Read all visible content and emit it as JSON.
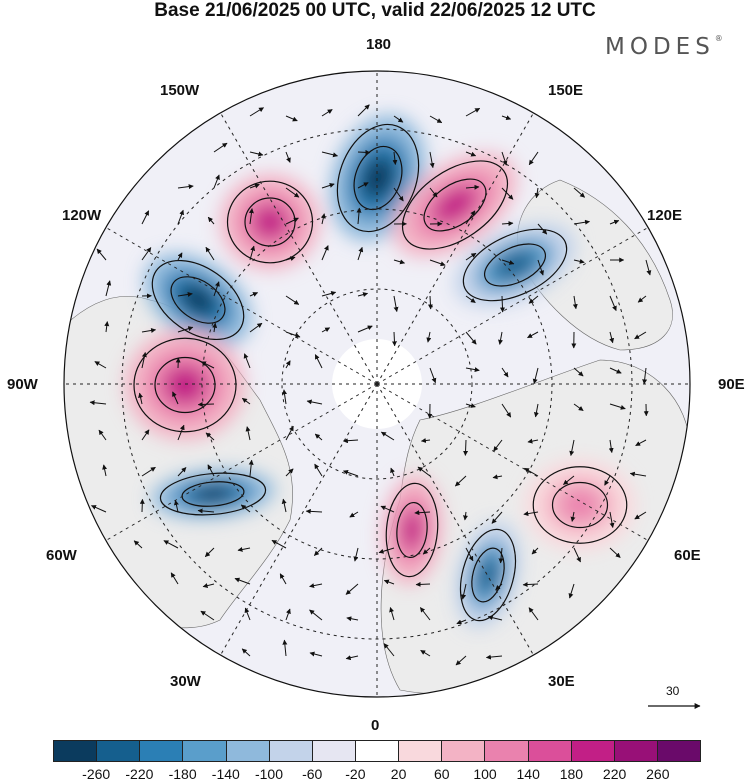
{
  "title": "Base 21/06/2025 00 UTC, valid 22/06/2025 12 UTC",
  "brand": "MODES",
  "brand_mark": "®",
  "longitude_labels": {
    "top": "180",
    "bottom": "0",
    "left": "90W",
    "right": "90E",
    "upper_left": "150W",
    "upper_right": "150E",
    "mid_upper_left": "120W",
    "mid_upper_right": "120E",
    "mid_lower_left": "60W",
    "mid_lower_right": "60E",
    "lower_left": "30W",
    "lower_right": "30E"
  },
  "reference_vector": {
    "label": "30"
  },
  "colorbar": {
    "colors": [
      "#0b3b5e",
      "#155f8e",
      "#2b7fb5",
      "#5a9ecb",
      "#8fb9dc",
      "#c3d3ea",
      "#e6e6f2",
      "#ffffff",
      "#f9d9dd",
      "#f3b3c5",
      "#ea82ae",
      "#db4f9a",
      "#c21f86",
      "#981077",
      "#6a0a6a"
    ],
    "ticks": [
      "-260",
      "-220",
      "-180",
      "-140",
      "-100",
      "-60",
      "-20",
      "20",
      "60",
      "100",
      "140",
      "180",
      "220",
      "260"
    ]
  },
  "anomaly_centers": [
    {
      "name": "negative-center-180",
      "sign": "negative",
      "strength": "strong"
    },
    {
      "name": "negative-center-120w",
      "sign": "negative",
      "strength": "strong"
    },
    {
      "name": "negative-center-60w",
      "sign": "negative",
      "strength": "strong"
    },
    {
      "name": "negative-center-120e",
      "sign": "negative",
      "strength": "moderate"
    },
    {
      "name": "negative-center-30e",
      "sign": "negative",
      "strength": "moderate"
    },
    {
      "name": "positive-center-150w",
      "sign": "positive",
      "strength": "strong"
    },
    {
      "name": "positive-center-150e",
      "sign": "positive",
      "strength": "strong"
    },
    {
      "name": "positive-center-90w",
      "sign": "positive",
      "strength": "strong"
    },
    {
      "name": "positive-center-0",
      "sign": "positive",
      "strength": "strong"
    },
    {
      "name": "positive-center-60e",
      "sign": "positive",
      "strength": "weak"
    }
  ]
}
